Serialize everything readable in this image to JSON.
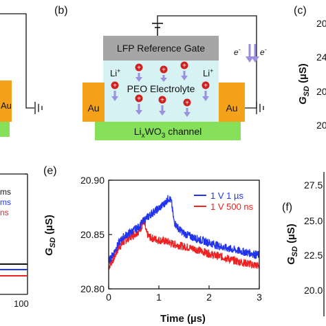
{
  "panel_b": {
    "label": "(b)",
    "gate_label": "LFP Reference Gate",
    "electrolyte_label": "PEO Electrolyte",
    "channel_label": "Li",
    "channel_sub": "x",
    "channel_mid": "WO",
    "channel_sub2": "3",
    "channel_tail": " channel",
    "electrode_left": "Au",
    "electrode_right": "Au",
    "ion_label_left": "Li",
    "ion_label_right": "Li",
    "ion_charge": "+",
    "electron_label": "e",
    "electron_charge": "-",
    "plus_sign": "+"
  },
  "panel_a_left": {
    "electrode": "Au",
    "legend_1": "ms",
    "legend_2": "ms",
    "legend_3": "ns",
    "tick_x_end": "100"
  },
  "panel_c": {
    "label": "(c)",
    "ytick_1": "20",
    "ytick_2": "24",
    "ytick_3": "20",
    "ytick_4": "20",
    "ylabel_main": "G",
    "ylabel_sub": "SD",
    "ylabel_unit": " (µS)"
  },
  "panel_e": {
    "label": "(e)",
    "ylabel_main": "G",
    "ylabel_sub": "SD",
    "ylabel_unit": " (µS)",
    "xlabel": "Time (µs)"
  },
  "panel_f": {
    "label": "(f)",
    "ytick_labels": [
      "27.5",
      "25.0",
      "22.5",
      "20.0"
    ],
    "ylabel_main": "G",
    "ylabel_sub": "SD",
    "ylabel_unit": " (µS)"
  },
  "colors": {
    "gold": "#f5a21b",
    "green": "#86e05a",
    "gray": "#a6a6a6",
    "electrolyte": "#d6f2f2",
    "ion_red": "#d0201e",
    "arrow_purple": "#9b8fe0",
    "blue": "#2233ee",
    "red": "#ee2222"
  },
  "chart_data": {
    "type": "line",
    "xlabel": "Time (µs)",
    "ylabel": "G_SD (µS)",
    "xlim": [
      0,
      3
    ],
    "ylim": [
      20.8,
      20.9
    ],
    "xticks": [
      0,
      1,
      2,
      3
    ],
    "yticks": [
      20.8,
      20.85,
      20.9
    ],
    "ytick_labels": [
      "20.80",
      "20.85",
      "20.90"
    ],
    "legend_position": "top-right",
    "grid": false,
    "series": [
      {
        "name": "1 V 1 µs",
        "color": "#2233ee",
        "x": [
          0,
          0.1,
          0.2,
          0.3,
          0.4,
          0.5,
          0.6,
          0.7,
          0.8,
          0.9,
          1.0,
          1.1,
          1.2,
          1.25,
          1.3,
          1.4,
          1.5,
          1.7,
          1.9,
          2.1,
          2.3,
          2.5,
          2.7,
          2.9,
          3.0
        ],
        "y": [
          20.825,
          20.833,
          20.842,
          20.848,
          20.851,
          20.854,
          20.857,
          20.863,
          20.867,
          20.871,
          20.874,
          20.878,
          20.884,
          20.88,
          20.862,
          20.855,
          20.851,
          20.847,
          20.844,
          20.841,
          20.838,
          20.836,
          20.834,
          20.832,
          20.831
        ]
      },
      {
        "name": "1 V 500 ns",
        "color": "#ee2222",
        "x": [
          0,
          0.1,
          0.2,
          0.3,
          0.4,
          0.5,
          0.6,
          0.65,
          0.7,
          0.75,
          0.8,
          0.9,
          1.0,
          1.1,
          1.2,
          1.3,
          1.5,
          1.7,
          1.9,
          2.1,
          2.3,
          2.5,
          2.7,
          2.9,
          3.0
        ],
        "y": [
          20.82,
          20.828,
          20.838,
          20.843,
          20.847,
          20.85,
          20.853,
          20.857,
          20.863,
          20.852,
          20.848,
          20.846,
          20.845,
          20.844,
          20.843,
          20.841,
          20.839,
          20.837,
          20.834,
          20.831,
          20.829,
          20.826,
          20.824,
          20.822,
          20.821
        ]
      }
    ]
  }
}
